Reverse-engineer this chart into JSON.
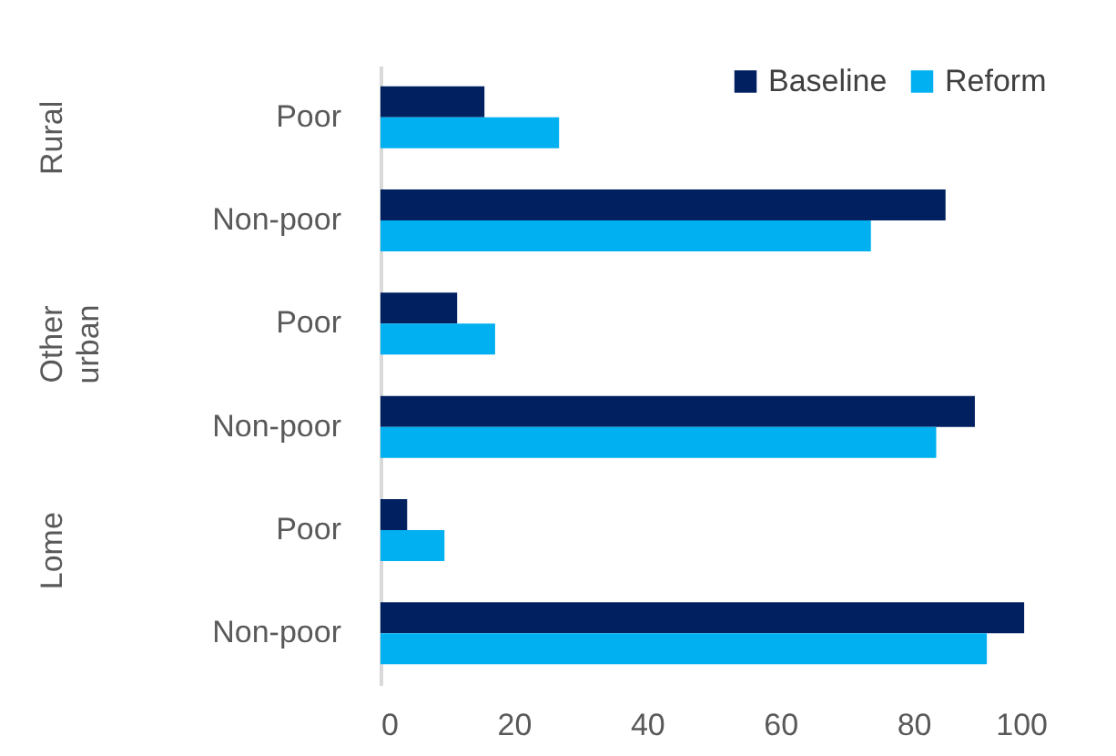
{
  "chart_data": {
    "type": "bar",
    "orientation": "horizontal",
    "categories": [
      "Poor",
      "Non-poor",
      "Poor",
      "Non-poor",
      "Poor",
      "Non-poor"
    ],
    "series": [
      {
        "name": "Baseline",
        "color": "#002060",
        "values": [
          15.6,
          84.8,
          11.5,
          89.2,
          4.0,
          96.6
        ]
      },
      {
        "name": "Reform",
        "color": "#00b0f0",
        "values": [
          26.8,
          73.6,
          17.2,
          83.4,
          9.6,
          91.0
        ]
      }
    ],
    "annotations": [
      "Rural",
      "Other urban",
      "Lome"
    ],
    "xlim": [
      0,
      100
    ],
    "xticks": [
      0,
      20,
      40,
      60,
      80,
      100
    ],
    "grid": false,
    "legend": "top right"
  }
}
